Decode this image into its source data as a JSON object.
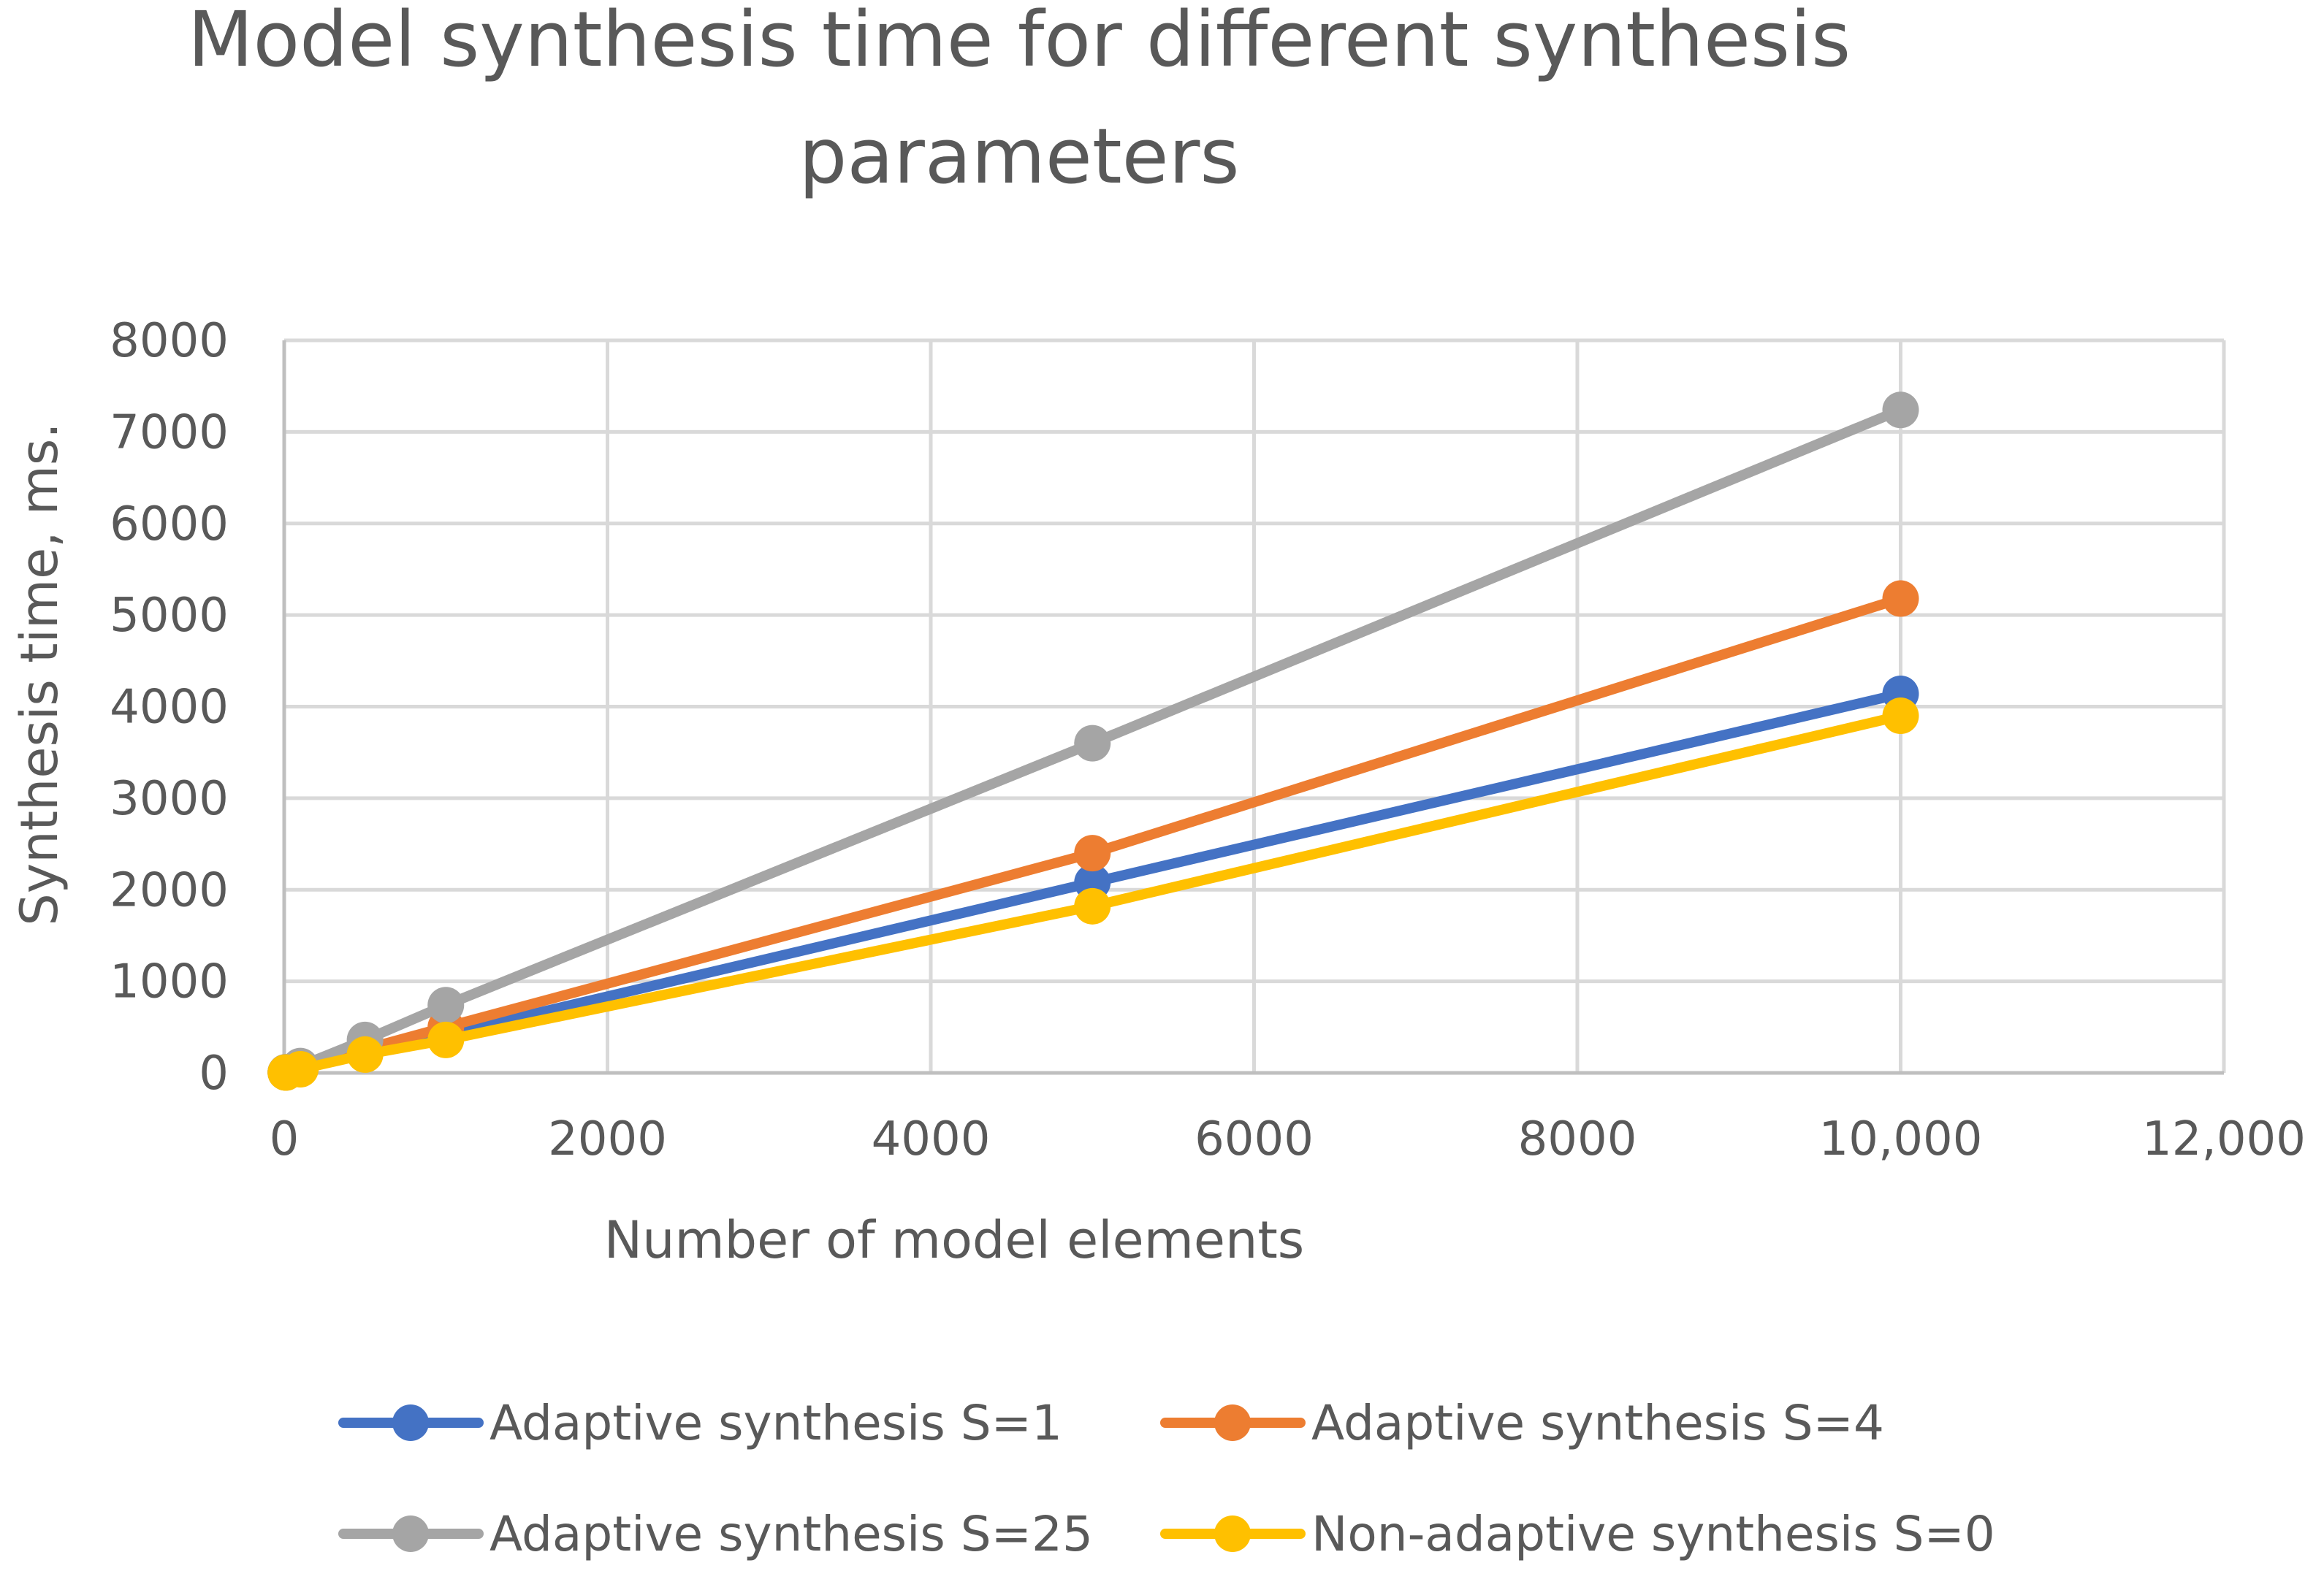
{
  "chart_data": {
    "type": "line",
    "title_lines": [
      "Model synthesis time for different synthesis",
      "parameters"
    ],
    "xlabel": "Number of model elements",
    "ylabel": "Synthesis time, ms.",
    "xlim": [
      0,
      12000
    ],
    "ylim": [
      0,
      8000
    ],
    "x_ticks": [
      0,
      2000,
      4000,
      6000,
      8000,
      10000,
      12000
    ],
    "x_tick_labels": [
      "0",
      "2000",
      "4000",
      "6000",
      "8000",
      "10,000",
      "12,000"
    ],
    "y_ticks": [
      0,
      1000,
      2000,
      3000,
      4000,
      5000,
      6000,
      7000,
      8000
    ],
    "y_tick_labels": [
      "0",
      "1000",
      "2000",
      "3000",
      "4000",
      "5000",
      "6000",
      "7000",
      "8000"
    ],
    "grid": true,
    "legend_position": "bottom",
    "x": [
      10,
      100,
      500,
      1000,
      5000,
      10000
    ],
    "series": [
      {
        "name": "Adaptive synthesis S=1",
        "color": "#4472C4",
        "values": [
          5,
          45,
          230,
          420,
          2080,
          4140
        ]
      },
      {
        "name": "Adaptive synthesis S=4",
        "color": "#ED7D31",
        "values": [
          6,
          52,
          260,
          500,
          2400,
          5180
        ]
      },
      {
        "name": "Adaptive synthesis S=25",
        "color": "#A5A5A5",
        "values": [
          8,
          75,
          360,
          740,
          3600,
          7240
        ]
      },
      {
        "name": "Non-adaptive synthesis S=0",
        "color": "#FFC000",
        "values": [
          4,
          40,
          200,
          360,
          1820,
          3900
        ]
      }
    ]
  }
}
